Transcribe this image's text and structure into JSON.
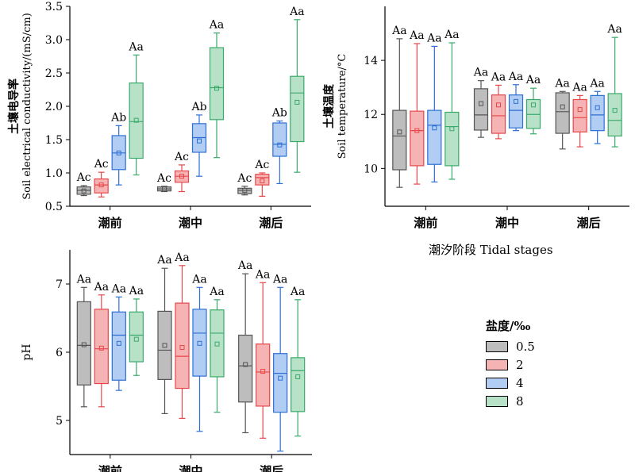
{
  "legend": {
    "title": "盐度/‰",
    "items": [
      {
        "label": "0.5",
        "fill": "#bdbdbd",
        "stroke": "#555555"
      },
      {
        "label": "2",
        "fill": "#f6b3b3",
        "stroke": "#e8474a"
      },
      {
        "label": "4",
        "fill": "#b1cdf3",
        "stroke": "#2d6fd6"
      },
      {
        "label": "8",
        "fill": "#b7e2c8",
        "stroke": "#3aaa6b"
      }
    ]
  },
  "shared_xlabel": "潮汐阶段 Tidal stages",
  "chart_data": [
    {
      "type": "box",
      "ylabel_cn": "土壤电导率",
      "ylabel": "Soil electrical conductivity/(mS/cm)",
      "categories": [
        "潮前",
        "潮中",
        "潮后"
      ],
      "ylim": [
        0.5,
        3.5
      ],
      "yticks": [
        0.5,
        1.0,
        1.5,
        2.0,
        2.5,
        3.0,
        3.5
      ],
      "ytick_labels": [
        "0.5",
        "1.0",
        "1.5",
        "2.0",
        "2.5",
        "3.0",
        "3.5"
      ],
      "series_names": [
        "0.5",
        "2",
        "4",
        "8"
      ],
      "groups": [
        [
          {
            "min": 0.66,
            "q1": 0.68,
            "median": 0.74,
            "q3": 0.79,
            "max": 0.81,
            "mean": 0.73,
            "label": "Ac"
          },
          {
            "min": 0.64,
            "q1": 0.7,
            "median": 0.82,
            "q3": 0.91,
            "max": 1.01,
            "mean": 0.82,
            "label": "Ac"
          },
          {
            "min": 0.82,
            "q1": 1.05,
            "median": 1.3,
            "q3": 1.56,
            "max": 1.71,
            "mean": 1.3,
            "label": "Ab"
          },
          {
            "min": 0.97,
            "q1": 1.22,
            "median": 1.77,
            "q3": 2.35,
            "max": 2.77,
            "mean": 1.79,
            "label": "Aa"
          }
        ],
        [
          {
            "min": 0.72,
            "q1": 0.73,
            "median": 0.76,
            "q3": 0.79,
            "max": 0.8,
            "mean": 0.76,
            "label": "Ac"
          },
          {
            "min": 0.72,
            "q1": 0.86,
            "median": 0.95,
            "q3": 1.03,
            "max": 1.12,
            "mean": 0.95,
            "label": "Ac"
          },
          {
            "min": 0.95,
            "q1": 1.31,
            "median": 1.53,
            "q3": 1.74,
            "max": 1.87,
            "mean": 1.48,
            "label": "Ab"
          },
          {
            "min": 1.23,
            "q1": 1.8,
            "median": 2.28,
            "q3": 2.88,
            "max": 3.1,
            "mean": 2.27,
            "label": "Aa"
          }
        ],
        [
          {
            "min": 0.67,
            "q1": 0.69,
            "median": 0.74,
            "q3": 0.77,
            "max": 0.8,
            "mean": 0.74,
            "label": "Ac"
          },
          {
            "min": 0.65,
            "q1": 0.82,
            "median": 0.93,
            "q3": 0.98,
            "max": 1.0,
            "mean": 0.88,
            "label": "Ac"
          },
          {
            "min": 0.84,
            "q1": 1.25,
            "median": 1.43,
            "q3": 1.75,
            "max": 1.78,
            "mean": 1.42,
            "label": "Ab"
          },
          {
            "min": 1.01,
            "q1": 1.47,
            "median": 2.2,
            "q3": 2.45,
            "max": 3.3,
            "mean": 2.06,
            "label": "Aa"
          }
        ]
      ]
    },
    {
      "type": "box",
      "ylabel_cn": "土壤温度",
      "ylabel": "Soil temperature/°C",
      "categories": [
        "潮前",
        "潮中",
        "潮后"
      ],
      "ylim": [
        8.6,
        16.0
      ],
      "yticks": [
        10,
        12,
        14
      ],
      "ytick_labels": [
        "10",
        "12",
        "14"
      ],
      "series_names": [
        "0.5",
        "2",
        "4",
        "8"
      ],
      "groups": [
        [
          {
            "min": 9.3,
            "q1": 9.95,
            "median": 11.2,
            "q3": 12.15,
            "max": 14.8,
            "mean": 11.35,
            "label": "Aa"
          },
          {
            "min": 9.42,
            "q1": 10.1,
            "median": 11.4,
            "q3": 12.12,
            "max": 14.62,
            "mean": 11.4,
            "label": "Aa"
          },
          {
            "min": 9.5,
            "q1": 10.15,
            "median": 11.6,
            "q3": 12.15,
            "max": 14.52,
            "mean": 11.5,
            "label": "Aa"
          },
          {
            "min": 9.6,
            "q1": 10.1,
            "median": 11.55,
            "q3": 12.08,
            "max": 14.65,
            "mean": 11.47,
            "label": "Aa"
          }
        ],
        [
          {
            "min": 11.15,
            "q1": 11.42,
            "median": 11.98,
            "q3": 12.95,
            "max": 13.25,
            "mean": 12.4,
            "label": "Aa"
          },
          {
            "min": 11.1,
            "q1": 11.3,
            "median": 11.95,
            "q3": 12.72,
            "max": 13.08,
            "mean": 12.35,
            "label": "Aa"
          },
          {
            "min": 11.4,
            "q1": 11.5,
            "median": 12.15,
            "q3": 12.72,
            "max": 13.1,
            "mean": 12.48,
            "label": "Aa"
          },
          {
            "min": 11.28,
            "q1": 11.48,
            "median": 12.0,
            "q3": 12.55,
            "max": 12.97,
            "mean": 12.35,
            "label": "Aa"
          }
        ],
        [
          {
            "min": 10.72,
            "q1": 11.3,
            "median": 12.1,
            "q3": 12.8,
            "max": 12.85,
            "mean": 12.28,
            "label": "Aa"
          },
          {
            "min": 10.8,
            "q1": 11.35,
            "median": 11.88,
            "q3": 12.55,
            "max": 12.7,
            "mean": 12.18,
            "label": "Aa"
          },
          {
            "min": 10.92,
            "q1": 11.4,
            "median": 11.98,
            "q3": 12.7,
            "max": 12.85,
            "mean": 12.25,
            "label": "Aa"
          },
          {
            "min": 10.8,
            "q1": 11.2,
            "median": 11.78,
            "q3": 12.77,
            "max": 14.85,
            "mean": 12.15,
            "label": "Aa"
          }
        ]
      ]
    },
    {
      "type": "box",
      "ylabel": "pH",
      "categories": [
        "潮前",
        "潮中",
        "潮后"
      ],
      "ylim": [
        4.5,
        7.5
      ],
      "yticks": [
        5,
        6,
        7
      ],
      "ytick_labels": [
        "5",
        "6",
        "7"
      ],
      "series_names": [
        "0.5",
        "2",
        "4",
        "8"
      ],
      "groups": [
        [
          {
            "min": 5.2,
            "q1": 5.52,
            "median": 6.1,
            "q3": 6.74,
            "max": 6.95,
            "mean": 6.11,
            "label": "Aa"
          },
          {
            "min": 5.2,
            "q1": 5.54,
            "median": 6.05,
            "q3": 6.63,
            "max": 6.84,
            "mean": 6.06,
            "label": "Aa"
          },
          {
            "min": 5.44,
            "q1": 5.59,
            "median": 6.25,
            "q3": 6.59,
            "max": 6.81,
            "mean": 6.13,
            "label": "Aa"
          },
          {
            "min": 5.66,
            "q1": 5.86,
            "median": 6.25,
            "q3": 6.59,
            "max": 6.78,
            "mean": 6.19,
            "label": "Aa"
          }
        ],
        [
          {
            "min": 5.1,
            "q1": 5.6,
            "median": 6.03,
            "q3": 6.6,
            "max": 7.23,
            "mean": 6.1,
            "label": "Aa"
          },
          {
            "min": 5.03,
            "q1": 5.47,
            "median": 5.94,
            "q3": 6.72,
            "max": 7.27,
            "mean": 6.07,
            "label": "Aa"
          },
          {
            "min": 4.84,
            "q1": 5.65,
            "median": 6.28,
            "q3": 6.63,
            "max": 6.95,
            "mean": 6.13,
            "label": "Aa"
          },
          {
            "min": 5.12,
            "q1": 5.64,
            "median": 6.28,
            "q3": 6.62,
            "max": 6.77,
            "mean": 6.12,
            "label": "Aa"
          }
        ],
        [
          {
            "min": 4.82,
            "q1": 5.27,
            "median": 5.8,
            "q3": 6.25,
            "max": 7.15,
            "mean": 5.82,
            "label": "Aa"
          },
          {
            "min": 4.74,
            "q1": 5.21,
            "median": 5.71,
            "q3": 6.12,
            "max": 7.02,
            "mean": 5.72,
            "label": "Aa"
          },
          {
            "min": 4.55,
            "q1": 5.12,
            "median": 5.69,
            "q3": 5.98,
            "max": 6.95,
            "mean": 5.62,
            "label": "Aa"
          },
          {
            "min": 4.77,
            "q1": 5.13,
            "median": 5.73,
            "q3": 5.92,
            "max": 6.77,
            "mean": 5.64,
            "label": "Aa"
          }
        ]
      ]
    }
  ]
}
